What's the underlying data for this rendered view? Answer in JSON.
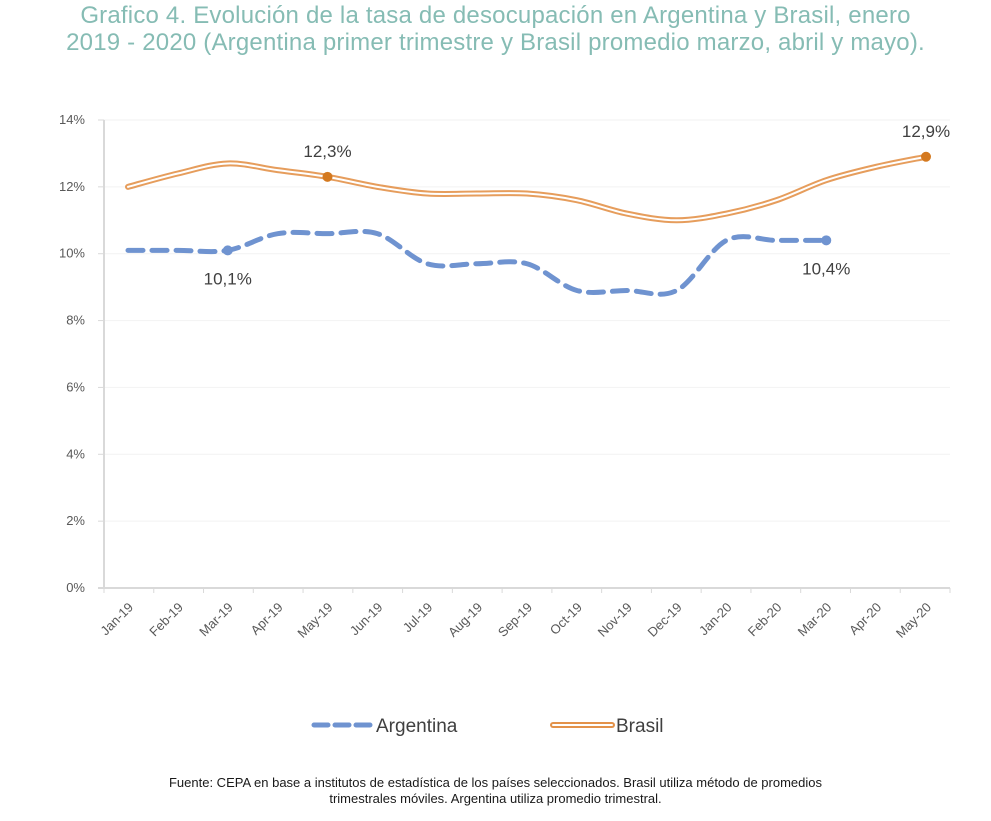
{
  "title": {
    "line1": "Grafico 4. Evolución de la tasa de desocupación en Argentina y Brasil, enero",
    "line2": "2019 - 2020 (Argentina primer trimestre y Brasil promedio marzo, abril y mayo)."
  },
  "source": {
    "line1": "Fuente: CEPA en base a institutos de estadística de los países seleccionados. Brasil utiliza método de promedios",
    "line2": "trimestrales móviles. Argentina utiliza promedio trimestral."
  },
  "colors": {
    "title": "#86bcb4",
    "argentina": "#6f93d0",
    "brasil": "#e3924a",
    "brasil_marker": "#d4791f",
    "axis": "#d9d9d9",
    "grid": "#f2f2f2"
  },
  "chart_data": {
    "type": "line",
    "title": "Evolución de la tasa de desocupación en Argentina y Brasil, enero 2019 - 2020",
    "xlabel": "",
    "ylabel": "",
    "ylim": [
      0,
      14
    ],
    "yticks": [
      "0%",
      "2%",
      "4%",
      "6%",
      "8%",
      "10%",
      "12%",
      "14%"
    ],
    "ytick_values": [
      0,
      2,
      4,
      6,
      8,
      10,
      12,
      14
    ],
    "grid": true,
    "legend_position": "bottom",
    "categories": [
      "Jan-19",
      "Feb-19",
      "Mar-19",
      "Apr-19",
      "May-19",
      "Jun-19",
      "Jul-19",
      "Aug-19",
      "Sep-19",
      "Oct-19",
      "Nov-19",
      "Dec-19",
      "Jan-20",
      "Feb-20",
      "Mar-20",
      "Apr-20",
      "May-20"
    ],
    "series": [
      {
        "name": "Argentina",
        "style": "dashed",
        "values": [
          10.1,
          10.1,
          10.1,
          10.6,
          10.6,
          10.6,
          9.7,
          9.7,
          9.7,
          8.9,
          8.9,
          8.9,
          10.4,
          10.4,
          10.4,
          null,
          null
        ],
        "annotations": [
          {
            "index": 2,
            "label": "10,1%",
            "position": "below"
          },
          {
            "index": 14,
            "label": "10,4%",
            "position": "below"
          }
        ]
      },
      {
        "name": "Brasil",
        "style": "double",
        "values": [
          12.0,
          12.4,
          12.7,
          12.5,
          12.3,
          12.0,
          11.8,
          11.8,
          11.8,
          11.6,
          11.2,
          11.0,
          11.2,
          11.6,
          12.2,
          12.6,
          12.9
        ],
        "annotations": [
          {
            "index": 4,
            "label": "12,3%",
            "position": "above"
          },
          {
            "index": 16,
            "label": "12,9%",
            "position": "above"
          }
        ]
      }
    ]
  }
}
